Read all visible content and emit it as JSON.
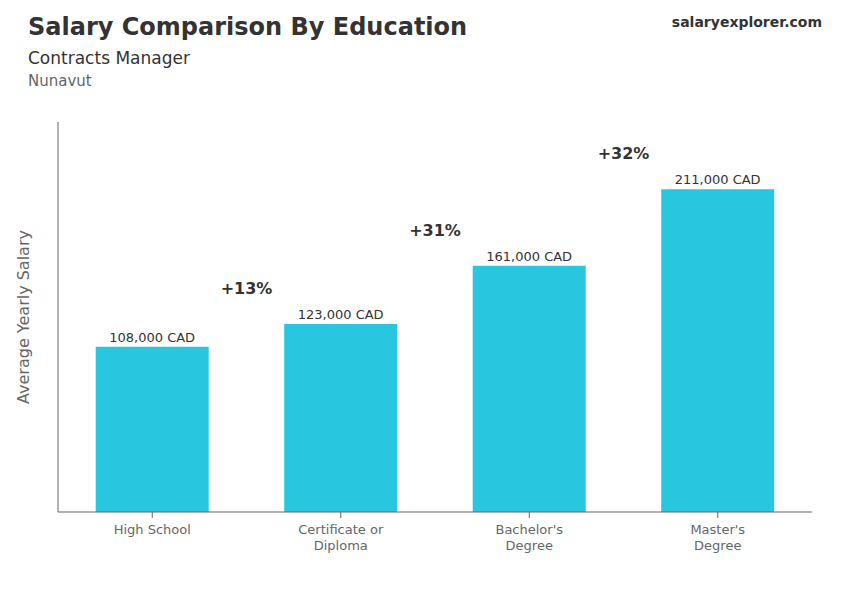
{
  "chart_data": {
    "type": "bar",
    "title": "Salary Comparison By Education",
    "subtitle": "Contracts Manager",
    "location": "Nunavut",
    "watermark": [
      "salary",
      "explorer",
      ".com"
    ],
    "ylabel": "Average Yearly Salary",
    "categories": [
      "High School",
      "Certificate or\nDiploma",
      "Bachelor's\nDegree",
      "Master's\nDegree"
    ],
    "values": [
      108000,
      123000,
      161000,
      211000
    ],
    "value_labels": [
      "108,000 CAD",
      "123,000 CAD",
      "161,000 CAD",
      "211,000 CAD"
    ],
    "data_labels": true,
    "annotations": [
      "+13%",
      "+31%",
      "+32%"
    ],
    "color": "#29c6e0",
    "ylim": [
      0,
      255000
    ],
    "tick_labels": "x"
  }
}
